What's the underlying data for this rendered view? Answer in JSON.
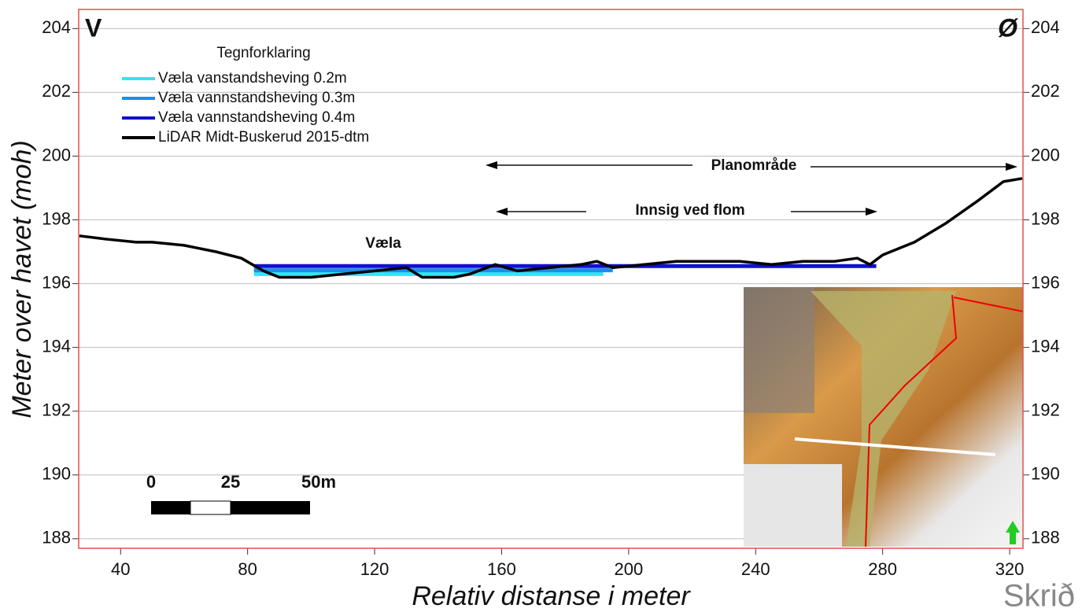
{
  "chart_data": {
    "type": "line",
    "xlabel": "Relativ distanse i meter",
    "ylabel": "Meter over havet (moh)",
    "xlim": [
      26.8,
      324.2
    ],
    "xticks": [
      40,
      80,
      120,
      160,
      200,
      240,
      280,
      320
    ],
    "ylim": [
      187.7,
      204.6
    ],
    "yticks": [
      188,
      190,
      192,
      194,
      196,
      198,
      200,
      202,
      204
    ],
    "grid": true,
    "legend_title": "Tegnforklaring",
    "series": [
      {
        "name": "Væla vanstandsheving 0.2m",
        "color": "#33e5f0",
        "x": [
          82,
          192
        ],
        "values": [
          196.3,
          196.3
        ]
      },
      {
        "name": "Væla vannstandsheving 0.3m",
        "color": "#1a8fe8",
        "x": [
          82,
          195
        ],
        "values": [
          196.42,
          196.42
        ]
      },
      {
        "name": "Væla vannstandsheving 0.4m",
        "color": "#1010d0",
        "x": [
          82,
          278
        ],
        "values": [
          196.55,
          196.55
        ]
      },
      {
        "name": "LiDAR Midt-Buskerud 2015-dtm",
        "color": "#000000",
        "x": [
          27,
          35,
          45,
          50,
          60,
          70,
          78,
          85,
          90,
          100,
          110,
          120,
          130,
          135,
          145,
          150,
          158,
          165,
          175,
          185,
          190,
          195,
          205,
          215,
          225,
          235,
          245,
          255,
          265,
          272,
          276,
          280,
          290,
          300,
          310,
          318,
          324
        ],
        "values": [
          197.5,
          197.4,
          197.3,
          197.3,
          197.2,
          197.0,
          196.8,
          196.4,
          196.2,
          196.2,
          196.3,
          196.4,
          196.5,
          196.2,
          196.2,
          196.3,
          196.6,
          196.4,
          196.5,
          196.6,
          196.7,
          196.5,
          196.6,
          196.7,
          196.7,
          196.7,
          196.6,
          196.7,
          196.7,
          196.8,
          196.6,
          196.9,
          197.3,
          197.9,
          198.6,
          199.2,
          199.3
        ]
      }
    ],
    "annotations": {
      "west": "V",
      "east": "Ø",
      "lake": "Væla",
      "plan": "Planområde",
      "seepage": "Innsig ved flom"
    },
    "scale_bar": [
      "0",
      "25",
      "50m"
    ],
    "logo": "Skrið"
  }
}
